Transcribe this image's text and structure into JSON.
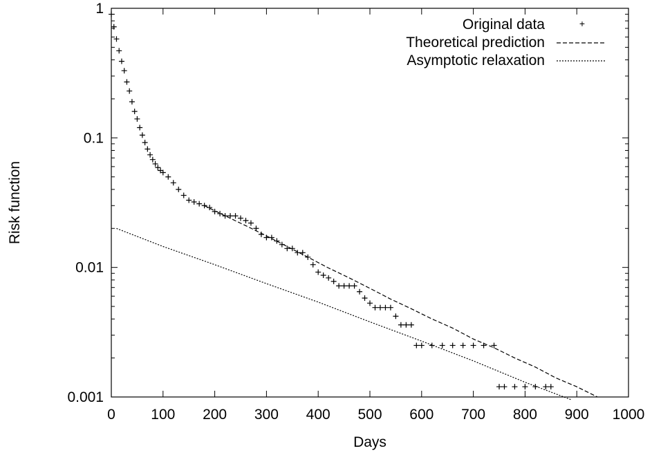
{
  "chart_data": {
    "type": "scatter",
    "xlabel": "Days",
    "ylabel": "Risk function",
    "xlim": [
      0,
      1000
    ],
    "ylim": [
      0.001,
      1
    ],
    "yscale": "log",
    "xticks": [
      "0",
      "100",
      "200",
      "300",
      "400",
      "500",
      "600",
      "700",
      "800",
      "900",
      "1000"
    ],
    "yticks": [
      "0.001",
      "0.01",
      "0.1",
      "1"
    ],
    "grid": false,
    "legend_position": "top-right",
    "legend": [
      {
        "label": "Original data",
        "style": "plus-marker"
      },
      {
        "label": "Theoretical prediction",
        "style": "dashed"
      },
      {
        "label": "Asymptotic relaxation",
        "style": "dotted"
      }
    ],
    "series": [
      {
        "name": "Original data",
        "kind": "points",
        "x": [
          0,
          5,
          10,
          15,
          20,
          25,
          30,
          35,
          40,
          45,
          50,
          55,
          60,
          65,
          70,
          75,
          80,
          85,
          90,
          95,
          100,
          110,
          120,
          130,
          140,
          150,
          160,
          170,
          180,
          190,
          200,
          210,
          220,
          230,
          240,
          250,
          260,
          270,
          280,
          290,
          300,
          310,
          320,
          330,
          340,
          350,
          360,
          370,
          380,
          390,
          400,
          410,
          420,
          430,
          440,
          450,
          460,
          470,
          480,
          490,
          500,
          510,
          520,
          530,
          540,
          550,
          560,
          570,
          580,
          590,
          600,
          620,
          640,
          660,
          680,
          700,
          720,
          740,
          750,
          760,
          780,
          800,
          820,
          840,
          850
        ],
        "y": [
          0.9,
          0.72,
          0.58,
          0.47,
          0.39,
          0.33,
          0.27,
          0.23,
          0.19,
          0.16,
          0.14,
          0.12,
          0.105,
          0.092,
          0.082,
          0.074,
          0.068,
          0.063,
          0.059,
          0.056,
          0.054,
          0.05,
          0.045,
          0.04,
          0.036,
          0.033,
          0.032,
          0.031,
          0.03,
          0.029,
          0.027,
          0.026,
          0.025,
          0.025,
          0.025,
          0.024,
          0.023,
          0.022,
          0.02,
          0.018,
          0.017,
          0.017,
          0.016,
          0.015,
          0.014,
          0.014,
          0.013,
          0.013,
          0.012,
          0.0105,
          0.0092,
          0.0087,
          0.0083,
          0.0078,
          0.0072,
          0.0072,
          0.0072,
          0.0072,
          0.0065,
          0.0058,
          0.0053,
          0.0049,
          0.0049,
          0.0049,
          0.0049,
          0.0042,
          0.0036,
          0.0036,
          0.0036,
          0.0025,
          0.0025,
          0.0025,
          0.0025,
          0.0025,
          0.0025,
          0.0025,
          0.0025,
          0.0025,
          0.0012,
          0.0012,
          0.0012,
          0.0012,
          0.0012,
          0.0012,
          0.0012
        ]
      },
      {
        "name": "Theoretical prediction",
        "kind": "line",
        "x": [
          180,
          220,
          260,
          300,
          340,
          380,
          420,
          460,
          500,
          540,
          580,
          620,
          660,
          700,
          740,
          780,
          820,
          860,
          900,
          940
        ],
        "y": [
          0.03,
          0.025,
          0.021,
          0.0175,
          0.0145,
          0.012,
          0.0099,
          0.0083,
          0.0069,
          0.0057,
          0.0048,
          0.004,
          0.0034,
          0.0028,
          0.0024,
          0.002,
          0.0017,
          0.0014,
          0.0012,
          0.001
        ]
      },
      {
        "name": "Asymptotic relaxation",
        "kind": "line",
        "x": [
          10,
          100,
          200,
          300,
          400,
          500,
          600,
          700,
          800,
          890
        ],
        "y": [
          0.02,
          0.0145,
          0.0105,
          0.0075,
          0.0054,
          0.0038,
          0.0027,
          0.0019,
          0.0013,
          0.00095
        ]
      }
    ]
  }
}
